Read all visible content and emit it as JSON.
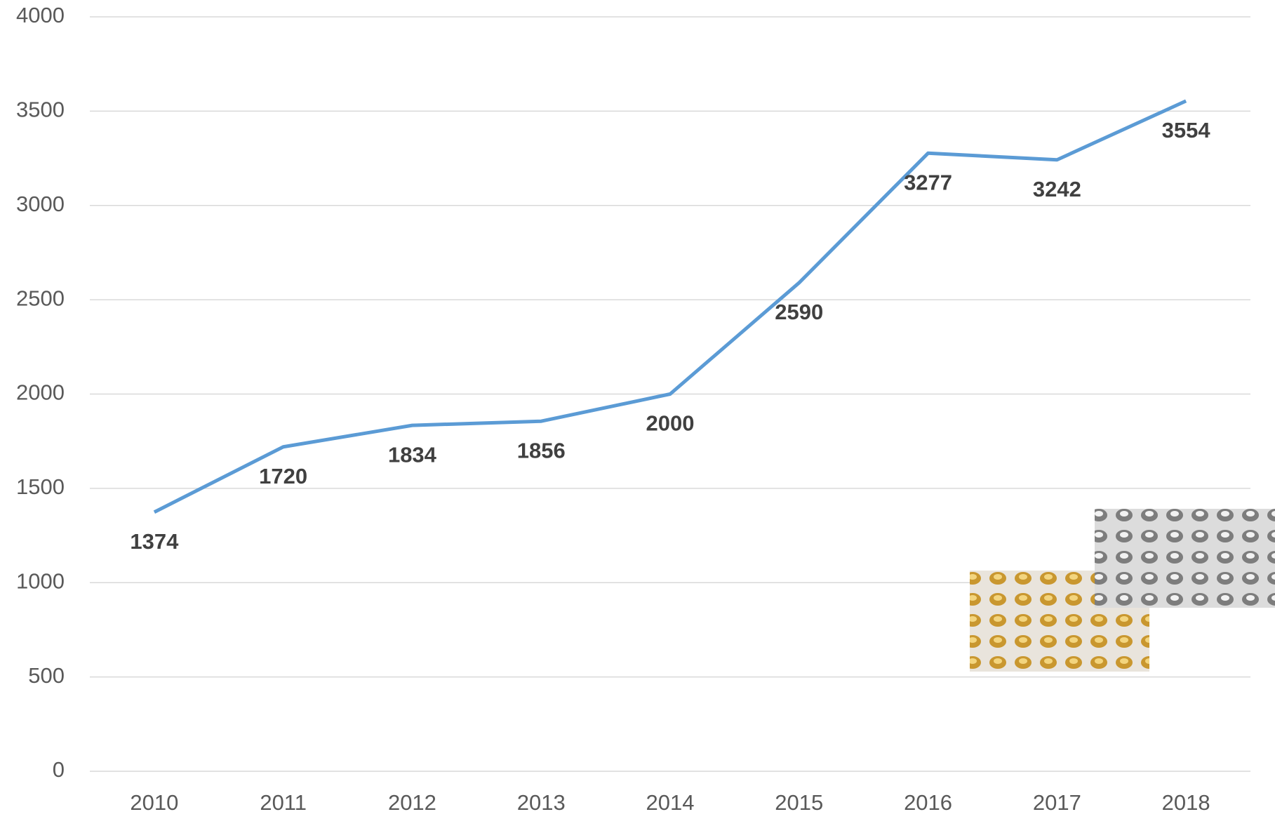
{
  "chart_data": {
    "type": "line",
    "categories": [
      "2010",
      "2011",
      "2012",
      "2013",
      "2014",
      "2015",
      "2016",
      "2017",
      "2018"
    ],
    "series": [
      {
        "color": "#5b9bd5",
        "values": [
          1374,
          1720,
          1834,
          1856,
          2000,
          2590,
          3277,
          3242,
          3554
        ]
      }
    ],
    "ylim": [
      0,
      4000
    ],
    "yticks": [
      0,
      500,
      1000,
      1500,
      2000,
      2500,
      3000,
      3500,
      4000
    ],
    "grid": true,
    "data_labels": true
  }
}
